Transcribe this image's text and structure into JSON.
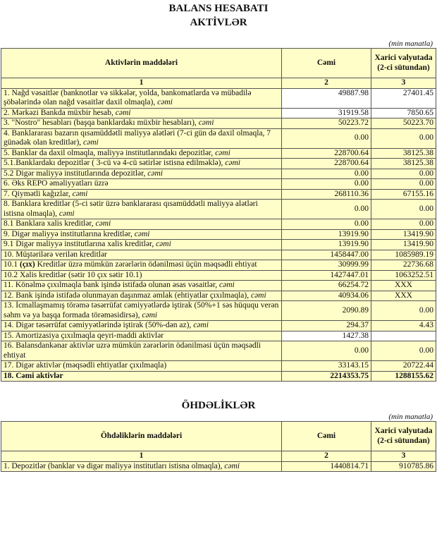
{
  "title": "BALANS HESABATI",
  "assets": {
    "heading": "AKTİVLƏR",
    "unit": "(min manatla)",
    "col_item": "Aktivlərin   maddələri",
    "col_total": "Cəmi",
    "col_fx": "Xarici valyutada (2-ci sütundan)",
    "idx": [
      "1",
      "2",
      "3"
    ],
    "rows": [
      {
        "pre": "1. Nağd vəsaitlər (banknotlar və sikkələr, yolda, bankomatlarda və mübadilə şöbələrində olan nağd vəsaitlər daxil olmaqla), ",
        "em": "cəmi",
        "total": "49887.98",
        "fx": "27401.45",
        "white": true
      },
      {
        "pre": "2. Mərkəzi Bankda müxbir hesab",
        "em": ", cəmi",
        "total": "31919.58",
        "fx": "7850.65",
        "white": true
      },
      {
        "pre": "3. \"Nostro\" hesabları (başqa banklardakı müxbir hesabları), ",
        "em": "cəmi",
        "total": "50223.72",
        "fx": "50223.70"
      },
      {
        "pre": "4. Banklararası bazarın qısamüddətli maliyyə alətləri (7-ci gün də daxil olmaqla, 7 günədək olan kreditlər), ",
        "em": "cəmi",
        "total": "0.00",
        "fx": "0.00"
      },
      {
        "pre": "5. Banklar da daxil olmaqla, maliyyə institutlarındakı depozitlər, ",
        "em": "cəmi",
        "total": "228700.64",
        "fx": "38125.38"
      },
      {
        "pre": "5.1.Banklardakı depozitlər ( 3-cü və 4-cü sətirlər istisna edilməklə), ",
        "em": "cəmi",
        "total": "228700.64",
        "fx": "38125.38"
      },
      {
        "pre": "5.2 Digər maliyyə institutlarında depozitlər, ",
        "em": "cəmi",
        "total": "0.00",
        "fx": "0.00"
      },
      {
        "pre": "6. Əks REPO əməliyyatları üzrə",
        "total": "0.00",
        "fx": "0.00"
      },
      {
        "pre": "7. Qiymətli kağızlar, ",
        "em": "cəmi",
        "total": "268110.36",
        "fx": "67155.16"
      },
      {
        "pre": "8. Banklara kreditlər (5-ci sətir üzrə banklararası qısamüddətli maliyyə alətləri istisna olmaqla), ",
        "em": "cəmi",
        "total": "0.00",
        "fx": "0.00"
      },
      {
        "pre": "8.1 Banklara xalis kreditlər, ",
        "em": "cəmi",
        "total": "0.00",
        "fx": "0.00"
      },
      {
        "pre": "9. Digər maliyyə institutlarına kreditlər, ",
        "em": "cəmi",
        "total": "13919.90",
        "fx": "13419.90"
      },
      {
        "pre": "9.1 Digər maliyyə institutlarına xalis kreditlər, ",
        "em": "cəmi",
        "total": "13919.90",
        "fx": "13419.90"
      },
      {
        "pre": "10. Müştərilərə verilən kreditlər",
        "total": "1458447.00",
        "fx": "1085989.19"
      },
      {
        "pre": "10.1 ",
        "b": "(çıx)",
        "post": " Kreditlər üzrə mümkün zərərlərin ödənilməsi üçün məqsədli ehtiyat",
        "total": "30999.99",
        "fx": "22736.68"
      },
      {
        "pre": "10.2 Xalis kreditlər (sətir 10 çıx sətir 10.1)",
        "total": "1427447.01",
        "fx": "1063252.51"
      },
      {
        "pre": "11. Könəlmə çıxılmaqla bank işində istifadə olunan əsas vəsaitlər, ",
        "em": "cəmi",
        "total": "66254.72",
        "fx": "XXX",
        "center": true
      },
      {
        "pre": "12. Bank işində istifadə olunmayan daşınmaz əmlak (ehtiyatlar çıxılmaqla), ",
        "em": "cəmi",
        "total": "40934.06",
        "fx": "XXX",
        "center": true
      },
      {
        "pre": "13. İcmallaşmamış törəmə təsərrüfat cəmiyyətlərdə iştirak (50%+1 səs hüququ verən səhm və ya başqa formada törəməsidirsə), ",
        "em": "cəmi",
        "total": "2090.89",
        "fx": "0.00"
      },
      {
        "pre": "14. Digər təsərrüfat cəmiyyətlərində iştirak (50%-dən az), ",
        "em": "cəmi",
        "total": "294.37",
        "fx": "4.43"
      },
      {
        "pre": "15. Amortizasiya çıxılmaqla qeyri-maddi aktivlər",
        "total": "1427.38",
        "fx": "",
        "white": true
      },
      {
        "pre": "16. Balansdankənar aktivlər uzrə mümkün zərərlərin ödənilməsi üçün məqsədli ehtiyat",
        "total": "0.00",
        "fx": "0.00"
      },
      {
        "pre": "17. Digər aktivlər (məqsədli ehtiyatlar çıxılmaqla)",
        "total": "33143.15",
        "fx": "20722.44"
      },
      {
        "pre": "18. Cəmi aktivlər",
        "total": "2214353.75",
        "fx": "1288155.62",
        "bold": true
      }
    ]
  },
  "liabilities": {
    "heading": "ÖHDƏLİKLƏR",
    "unit": "(min manatla)",
    "col_item": "Öhdəliklərin maddələri",
    "col_total": "Cəmi",
    "col_fx": "Xarici valyutada (2-ci sütundan)",
    "idx": [
      "1",
      "2",
      "3"
    ],
    "rows": [
      {
        "pre": "1. Depozitlər (banklar və digər maliyyə institutları istisna olmaqla), ",
        "em": "cəmi",
        "total": "1440814.71",
        "fx": "910785.86"
      }
    ]
  }
}
